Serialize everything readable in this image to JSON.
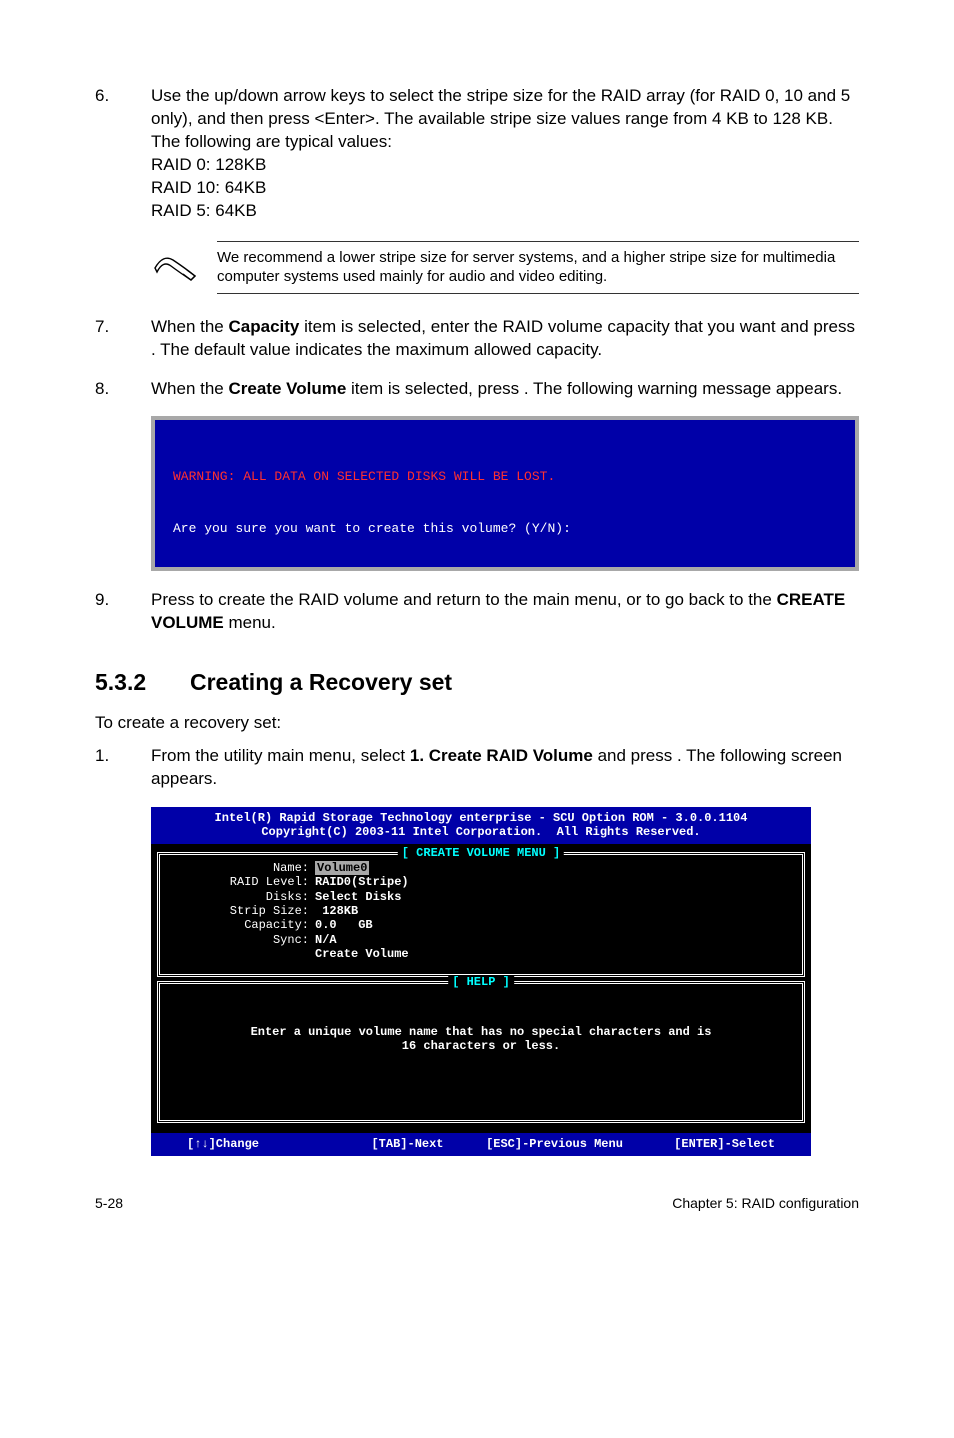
{
  "steps_a": [
    {
      "num": "6.",
      "body_parts": [
        "Use the up/down arrow keys to select the stripe size for the RAID array (for RAID 0, 10 and 5 only), and then press <Enter>. The available stripe size values range from 4 KB to 128 KB. The following are typical values:",
        "RAID 0: 128KB",
        "RAID 10: 64KB",
        "RAID 5: 64KB"
      ]
    }
  ],
  "note": "We recommend a lower stripe size for server systems, and a higher stripe size for multimedia computer systems used mainly for audio and video editing.",
  "steps_b": [
    {
      "num": "7.",
      "html": "When the <b>Capacity</b> item is selected, enter the RAID volume capacity that you want and press <Enter>. The default value indicates the maximum allowed capacity."
    },
    {
      "num": "8.",
      "html": "When the <b>Create Volume</b> item is selected, press <Enter>. The following warning message appears."
    }
  ],
  "warning_console": {
    "line1": "WARNING: ALL DATA ON SELECTED DISKS WILL BE LOST.",
    "line2": "Are you sure you want to create this volume? (Y/N):"
  },
  "steps_c": [
    {
      "num": "9.",
      "html": "Press <Y> to create the RAID volume and return to the main menu, or <N> to go back to the <b>CREATE VOLUME</b> menu."
    }
  ],
  "section": {
    "num": "5.3.2",
    "title": "Creating a Recovery set"
  },
  "recovery_intro": "To create a recovery set:",
  "steps_d": [
    {
      "num": "1.",
      "html": "From the utility main menu, select <b>1. Create RAID Volume</b> and press <Enter>. The following screen appears."
    }
  ],
  "bios": {
    "header_l1": "Intel(R) Rapid Storage Technology enterprise - SCU Option ROM - 3.0.0.1104",
    "header_l2": "Copyright(C) 2003-11 Intel Corporation.  All Rights Reserved.",
    "panel1_title": "[ CREATE VOLUME MENU ]",
    "rows": [
      {
        "label": "Name:",
        "value": "Volume0",
        "selected": true
      },
      {
        "label": "RAID Level:",
        "value": "RAID0(Stripe)"
      },
      {
        "label": "Disks:",
        "value": "Select Disks"
      },
      {
        "label": "Strip Size:",
        "value": " 128KB"
      },
      {
        "label": "Capacity:",
        "value": "0.0   GB"
      },
      {
        "label": "Sync:",
        "value": "N/A"
      },
      {
        "label": "",
        "value": "Create Volume"
      }
    ],
    "panel2_title": "[ HELP ]",
    "help_text": "Enter a unique volume name that has no special characters and is\n16 characters or less.",
    "footer": [
      "[↑↓]Change",
      "[TAB]-Next",
      "[ESC]-Previous Menu",
      "[ENTER]-Select"
    ]
  },
  "page_footer": {
    "left": "5-28",
    "right": "Chapter 5: RAID configuration"
  }
}
